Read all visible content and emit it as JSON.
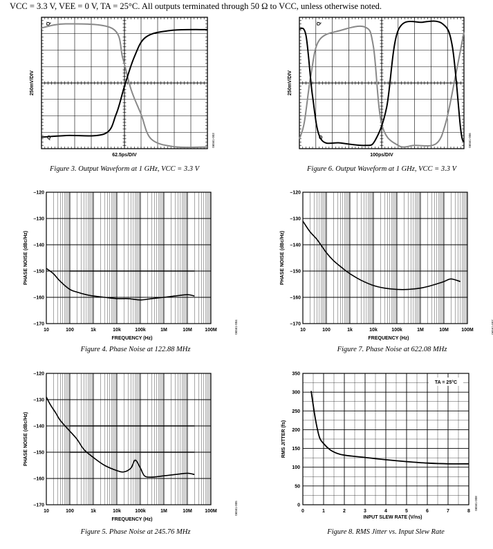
{
  "header": {
    "conditions": "VCC = 3.3 V, VEE = 0 V, TA = 25°C. All outputs terminated through 50 Ω to VCC, unless otherwise noted."
  },
  "chart_data": [
    {
      "id": "fig3",
      "type": "line",
      "caption": "Figure 3. Output Waveform at 1 GHz, VCC = 3.3 V",
      "ylabel": "250mV/DIV",
      "xlabel": "62.5ps/DIV",
      "code": "06561-003",
      "grid": true,
      "xdiv": 10,
      "ydiv": 8,
      "series": [
        {
          "name": "Q̄",
          "color": "#888888",
          "x": [
            0,
            1.5,
            4.3,
            4.9,
            5.4,
            6,
            6.6,
            8,
            10
          ],
          "y": [
            7.35,
            7.6,
            7.3,
            5.5,
            3.6,
            2.1,
            0.6,
            0.12,
            0.1
          ]
        },
        {
          "name": "Q",
          "color": "#000000",
          "x": [
            0,
            1.5,
            3.8,
            4.5,
            5,
            5.6,
            6.3,
            7.8,
            10
          ],
          "y": [
            0.7,
            0.8,
            0.9,
            2.1,
            3.8,
            5.6,
            6.8,
            7.2,
            7.25
          ]
        }
      ]
    },
    {
      "id": "fig6",
      "type": "line",
      "caption": "Figure 6. Output Waveform at 1 GHz, VCC = 3.3 V",
      "ylabel": "250mV/DIV",
      "xlabel": "100ps/DIV",
      "code": "06561-006",
      "grid": true,
      "xdiv": 10,
      "ydiv": 8,
      "series": [
        {
          "name": "Q̄",
          "color": "#888888",
          "x": [
            0,
            0.3,
            0.7,
            1.2,
            2.5,
            4,
            4.5,
            5,
            6,
            7,
            8.3,
            8.9,
            9.5,
            10
          ],
          "y": [
            0.6,
            1.6,
            4.5,
            6.6,
            7.2,
            7.4,
            6.2,
            1.5,
            0.2,
            0.2,
            0.3,
            1.6,
            4.5,
            7.1
          ]
        },
        {
          "name": "Q",
          "color": "#000000",
          "x": [
            0,
            0.4,
            0.8,
            1.3,
            2.5,
            4,
            4.6,
            5.3,
            6,
            7.5,
            8.7,
            9.3,
            9.8,
            10
          ],
          "y": [
            7.3,
            6.9,
            3.2,
            0.6,
            0.35,
            0.2,
            0.5,
            2.5,
            7.2,
            7.7,
            7.6,
            6.2,
            1.2,
            0.4
          ]
        }
      ]
    },
    {
      "id": "fig4",
      "type": "line",
      "caption": "Figure 4. Phase Noise at 122.88 MHz",
      "xlabel": "FREQUENCY (Hz)",
      "ylabel": "PHASE NOISE (dBc/Hz)",
      "code": "06561-004",
      "xscale": "log",
      "xlim": [
        10,
        100000000
      ],
      "ylim": [
        -170,
        -120
      ],
      "ystep": 10,
      "xticks": [
        10,
        100,
        1000,
        10000,
        100000,
        1000000,
        10000000,
        100000000
      ],
      "xticklabels": [
        "10",
        "100",
        "1k",
        "10k",
        "100k",
        "1M",
        "10M",
        "100M"
      ],
      "yticklabels": [
        "–120",
        "–130",
        "–140",
        "–150",
        "–160",
        "–170"
      ],
      "spurs": [
        -150
      ],
      "series": [
        {
          "x": [
            10,
            20,
            40,
            100,
            200,
            500,
            1000,
            3000,
            10000,
            30000,
            100000,
            300000,
            1000000,
            3000000,
            10000000,
            20000000
          ],
          "y": [
            -149,
            -151,
            -154,
            -157,
            -158,
            -159,
            -159.5,
            -160,
            -160.5,
            -160.5,
            -161,
            -160.5,
            -160,
            -159.5,
            -159,
            -159.5
          ]
        }
      ]
    },
    {
      "id": "fig7",
      "type": "line",
      "caption": "Figure 7. Phase Noise at 622.08 MHz",
      "xlabel": "FREQUENCY (Hz)",
      "ylabel": "PHASE NOISE (dBc/Hz)",
      "code": "06561-007",
      "xscale": "log",
      "xlim": [
        10,
        100000000
      ],
      "ylim": [
        -170,
        -120
      ],
      "ystep": 10,
      "xticks": [
        10,
        100,
        1000,
        10000,
        100000,
        1000000,
        10000000,
        100000000
      ],
      "xticklabels": [
        "10",
        "100",
        "1k",
        "10k",
        "100k",
        "1M",
        "10M",
        "100M"
      ],
      "yticklabels": [
        "–120",
        "–130",
        "–140",
        "–150",
        "–160",
        "–170"
      ],
      "spurs": [],
      "series": [
        {
          "x": [
            10,
            20,
            40,
            100,
            200,
            500,
            1000,
            3000,
            10000,
            30000,
            100000,
            300000,
            1000000,
            3000000,
            10000000,
            20000000,
            50000000
          ],
          "y": [
            -131,
            -135,
            -138,
            -143,
            -146,
            -149,
            -151,
            -153.5,
            -155.5,
            -156.5,
            -157,
            -157,
            -156.5,
            -155.5,
            -154,
            -153,
            -154
          ]
        }
      ]
    },
    {
      "id": "fig5",
      "type": "line",
      "caption": "Figure 5. Phase Noise at 245.76 MHz",
      "xlabel": "FREQUENCY (Hz)",
      "ylabel": "PHASE NOISE (dBc/Hz)",
      "code": "06561-005",
      "xscale": "log",
      "xlim": [
        10,
        100000000
      ],
      "ylim": [
        -170,
        -120
      ],
      "ystep": 10,
      "xticks": [
        10,
        100,
        1000,
        10000,
        100000,
        1000000,
        10000000,
        100000000
      ],
      "xticklabels": [
        "10",
        "100",
        "1k",
        "10k",
        "100k",
        "1M",
        "10M",
        "100M"
      ],
      "yticklabels": [
        "–120",
        "–130",
        "–140",
        "–150",
        "–160",
        "–170"
      ],
      "spurs": [
        -140,
        -150
      ],
      "series": [
        {
          "x": [
            10,
            15,
            25,
            40,
            100,
            200,
            400,
            1000,
            3000,
            10000,
            20000,
            40000,
            60000,
            100000,
            150000,
            300000,
            1000000,
            3000000,
            10000000,
            20000000
          ],
          "y": [
            -129,
            -132,
            -135,
            -138,
            -142,
            -145,
            -149,
            -152,
            -155,
            -157,
            -157.5,
            -156,
            -153,
            -156,
            -159,
            -159.5,
            -159,
            -158.5,
            -158,
            -158.5
          ]
        }
      ]
    },
    {
      "id": "fig8",
      "type": "line",
      "caption": "Figure 8. RMS Jitter vs. Input Slew Rate",
      "xlabel": "INPUT SLEW RATE (V/ns)",
      "ylabel": "RMS JITTER (fs)",
      "code": "06561-008",
      "annotation": "TA = 25°C",
      "xlim": [
        0,
        8
      ],
      "ylim": [
        0,
        350
      ],
      "xstep": 1,
      "ystep": 50,
      "xticklabels": [
        "0",
        "1",
        "2",
        "3",
        "4",
        "5",
        "6",
        "7",
        "8"
      ],
      "yticklabels": [
        "0",
        "50",
        "100",
        "150",
        "200",
        "250",
        "300",
        "350"
      ],
      "series": [
        {
          "x": [
            0.4,
            0.6,
            0.8,
            1,
            1.3,
            1.6,
            2,
            3,
            4,
            5,
            6,
            7,
            8
          ],
          "y": [
            303,
            230,
            180,
            163,
            147,
            138,
            132,
            126,
            120,
            115,
            111,
            109,
            109
          ]
        }
      ]
    }
  ]
}
